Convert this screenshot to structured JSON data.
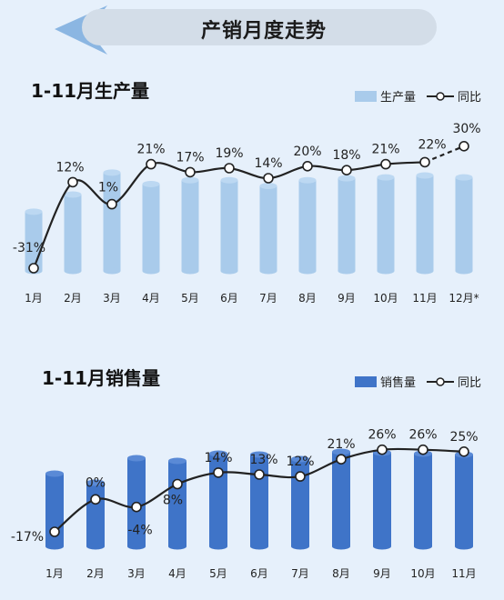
{
  "header": {
    "title": "产销月度走势"
  },
  "colors": {
    "production_bar": "#a9cbeb",
    "sales_bar": "#3f74c8",
    "line": "#222222",
    "marker_fill": "#ffffff",
    "header_arrow": "#8bb6e2",
    "header_pill": "#d3dde8",
    "background": "#e6f0fb"
  },
  "legends": {
    "production": {
      "bar": "生产量",
      "line": "同比"
    },
    "sales": {
      "bar": "销售量",
      "line": "同比"
    }
  },
  "chart_data": [
    {
      "type": "bar",
      "title": "1-11月生产量",
      "categories": [
        "1月",
        "2月",
        "3月",
        "4月",
        "5月",
        "6月",
        "7月",
        "8月",
        "9月",
        "10月",
        "11月",
        "12月*"
      ],
      "series": [
        {
          "name": "生产量",
          "values": [
            62,
            80,
            103,
            91,
            95,
            95,
            89,
            95,
            97,
            98,
            100,
            98
          ]
        },
        {
          "name": "同比",
          "type": "line",
          "values": [
            -31,
            12,
            1,
            21,
            17,
            19,
            14,
            20,
            18,
            21,
            22,
            30
          ],
          "labels": [
            "-31%",
            "12%",
            "1%",
            "21%",
            "17%",
            "19%",
            "14%",
            "20%",
            "18%",
            "21%",
            "22%",
            "30%"
          ],
          "dashed_from_index": 10
        }
      ],
      "axes": {
        "y_visible": false,
        "grid": false
      },
      "legend_position": "top-right"
    },
    {
      "type": "bar",
      "title": "1-11月销售量",
      "categories": [
        "1月",
        "2月",
        "3月",
        "4月",
        "5月",
        "6月",
        "7月",
        "8月",
        "9月",
        "10月",
        "11月"
      ],
      "series": [
        {
          "name": "销售量",
          "values": [
            80,
            70,
            97,
            94,
            102,
            101,
            96,
            104,
            103,
            102,
            101
          ]
        },
        {
          "name": "同比",
          "type": "line",
          "values": [
            -17,
            0,
            -4,
            8,
            14,
            13,
            12,
            21,
            26,
            26,
            25
          ],
          "labels": [
            "-17%",
            "0%",
            "-4%",
            "8%",
            "14%",
            "13%",
            "12%",
            "21%",
            "26%",
            "26%",
            "25%"
          ]
        }
      ],
      "axes": {
        "y_visible": false,
        "grid": false
      },
      "legend_position": "top-right"
    }
  ]
}
